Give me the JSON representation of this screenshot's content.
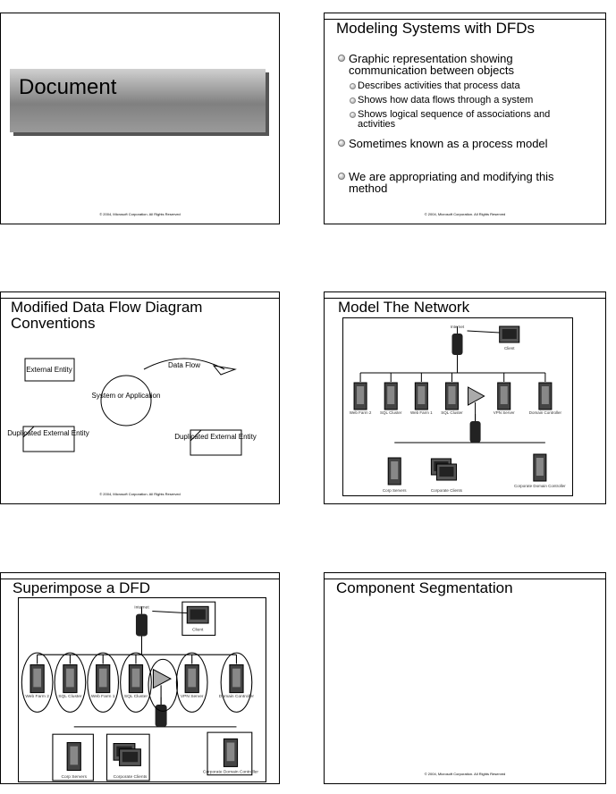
{
  "slides": [
    {
      "title": "Document",
      "footer": "© 2004, Microsoft Corporation. All Rights Reserved"
    },
    {
      "title": "Modeling Systems with DFDs",
      "bullets": [
        {
          "text": "Graphic representation showing communication between objects",
          "sub": [
            "Describes activities that process data",
            "Shows how data flows through a system",
            "Shows logical sequence of associations and activities"
          ]
        },
        {
          "text": "Sometimes known as a process model"
        },
        {
          "text": "We are appropriating and modifying this method"
        }
      ],
      "footer": "© 2004, Microsoft Corporation. All Rights Reserved"
    },
    {
      "title": "Modified Data Flow Diagram Conventions",
      "external_entity": "External Entity",
      "data_flow": "Data Flow",
      "process": "System or Application",
      "duplicated_left": "Duplicated External Entity",
      "duplicated_right": "Duplicated External Entity",
      "footer": "© 2004, Microsoft Corporation. All Rights Reserved"
    },
    {
      "title": "Model The Network",
      "labels": [
        "Internet",
        "Client",
        "Web Farm 2",
        "SQL Cluster",
        "Web Farm 1",
        "SQL Cluster",
        "VPN Server",
        "Domain Controller",
        "Corp Servers",
        "Corporate Clients",
        "Corporate Domain Controller"
      ]
    },
    {
      "title": "Superimpose a DFD",
      "labels": [
        "Internet",
        "Client",
        "Web Farm 2",
        "SQL Cluster",
        "Web Farm 1",
        "SQL Cluster",
        "VPN Server",
        "Domain Controller",
        "Corp Servers",
        "Corporate Clients",
        "Corporate Domain Controller"
      ]
    },
    {
      "title": "Component Segmentation",
      "footer": "© 2004, Microsoft Corporation. All Rights Reserved"
    }
  ]
}
